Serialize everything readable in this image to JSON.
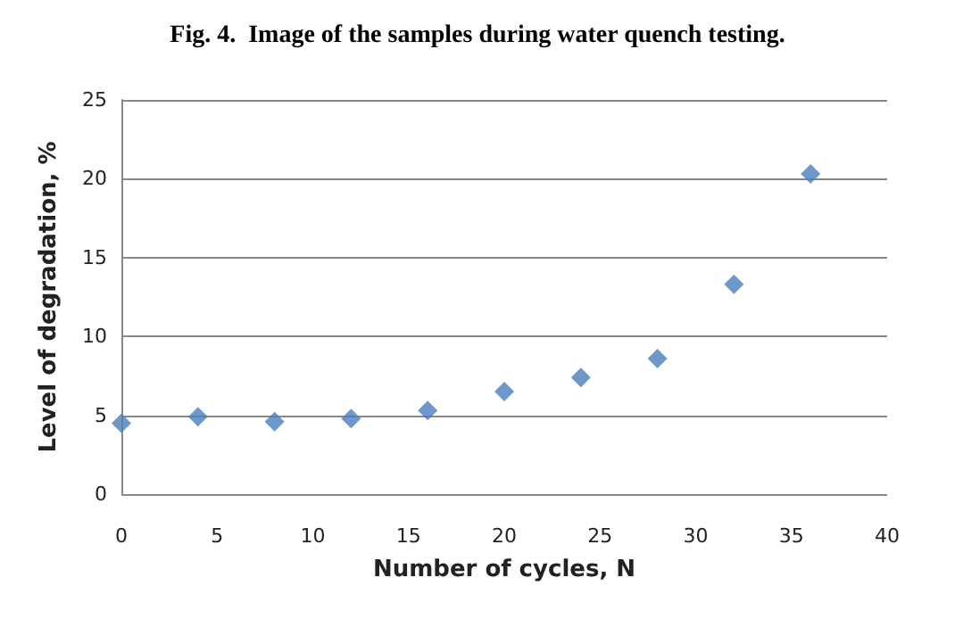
{
  "chart_data": {
    "type": "scatter",
    "title": "Fig. 4.  Image of the samples during water quench testing.",
    "xlabel": "Number of cycles, N",
    "ylabel": "Level of degradation, %",
    "x": [
      0,
      4,
      8,
      12,
      16,
      20,
      24,
      28,
      32,
      36
    ],
    "series": [
      {
        "color": "#4a7ebb",
        "values": [
          4.5,
          4.9,
          4.6,
          4.8,
          5.3,
          6.5,
          7.4,
          8.6,
          13.3,
          20.3
        ]
      }
    ],
    "xlim": [
      0,
      40
    ],
    "xticks": [
      0,
      5,
      10,
      15,
      20,
      25,
      30,
      35,
      40
    ],
    "ylim": [
      0,
      25
    ],
    "yticks": [
      0,
      5,
      10,
      15,
      20,
      25
    ],
    "grid": "y",
    "marker": "diamond"
  }
}
